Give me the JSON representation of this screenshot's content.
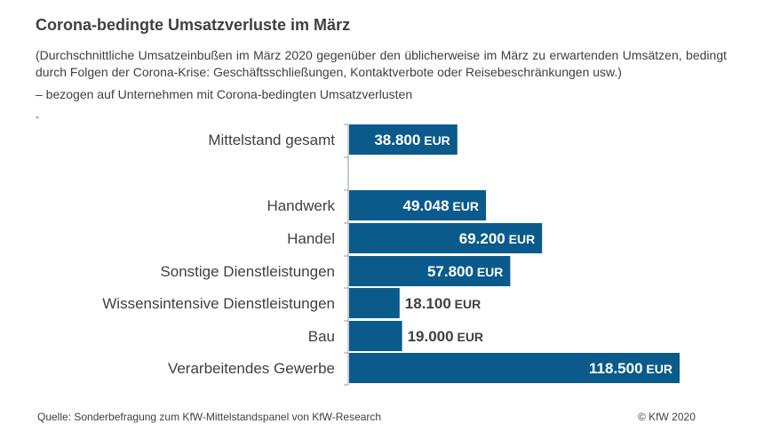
{
  "header": {
    "title": "Corona-bedingte Umsatzverluste im März",
    "subtitle": "(Durchschnittliche Umsatzeinbußen im März 2020 gegenüber den üblicherweise im März zu erwartenden Umsätzen, bedingt durch Folgen der Corona-Krise: Geschäftsschließungen, Kontaktverbote oder Reisebeschränkungen usw.)",
    "note": "– bezogen auf Unternehmen mit Corona-bedingten Umsatzverlusten",
    "dash": "-"
  },
  "footer": {
    "source": "Quelle: Sonderbefragung zum KfW-Mittelstandspanel von KfW-Research",
    "copyright": "© KfW 2020"
  },
  "colors": {
    "bar": "#0a5a8c",
    "label_inside": "#ffffff",
    "label_outside": "#404040"
  },
  "chart_data": {
    "type": "bar",
    "orientation": "horizontal",
    "categories": [
      "Mittelstand gesamt",
      "Handwerk",
      "Handel",
      "Sonstige Dienstleistungen",
      "Wissensintensive Dienstleistungen",
      "Bau",
      "Verarbeitendes Gewerbe"
    ],
    "values": [
      38800,
      49048,
      69200,
      57800,
      18100,
      19000,
      118500
    ],
    "value_labels": [
      "38.800",
      "49.048",
      "69.200",
      "57.800",
      "18.100",
      "19.000",
      "118.500"
    ],
    "unit": "EUR",
    "xlim": [
      0,
      118500
    ],
    "grid": false
  }
}
